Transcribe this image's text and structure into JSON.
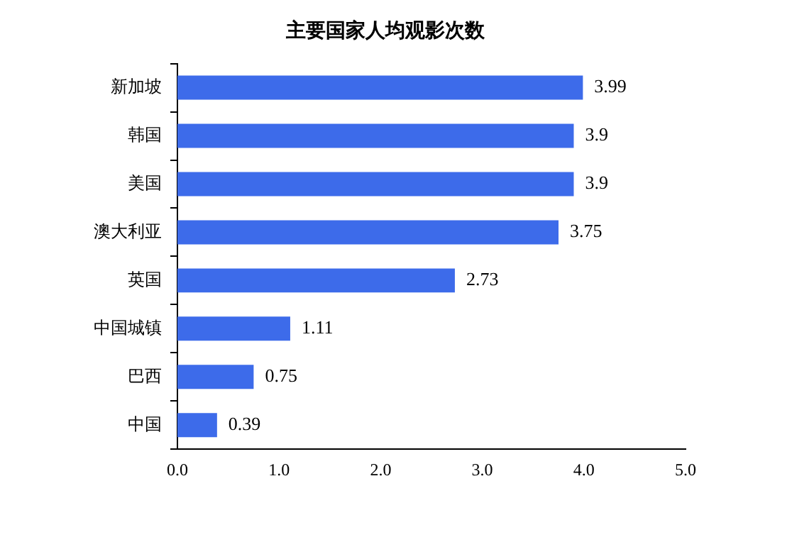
{
  "chart_data": {
    "type": "bar",
    "orientation": "horizontal",
    "title": "主要国家人均观影次数",
    "categories": [
      "新加坡",
      "韩国",
      "美国",
      "澳大利亚",
      "英国",
      "中国城镇",
      "巴西",
      "中国"
    ],
    "values": [
      3.99,
      3.9,
      3.9,
      3.75,
      2.73,
      1.11,
      0.75,
      0.39
    ],
    "color": "#3d6bea",
    "xlim": [
      0,
      5
    ],
    "xticks": [
      {
        "value": 0,
        "label": "0.0"
      },
      {
        "value": 1,
        "label": "1.0"
      },
      {
        "value": 2,
        "label": "2.0"
      },
      {
        "value": 3,
        "label": "3.0"
      },
      {
        "value": 4,
        "label": "4.0"
      },
      {
        "value": 5,
        "label": "5.0"
      }
    ],
    "data_labels": true,
    "grid": false,
    "legend": false
  }
}
